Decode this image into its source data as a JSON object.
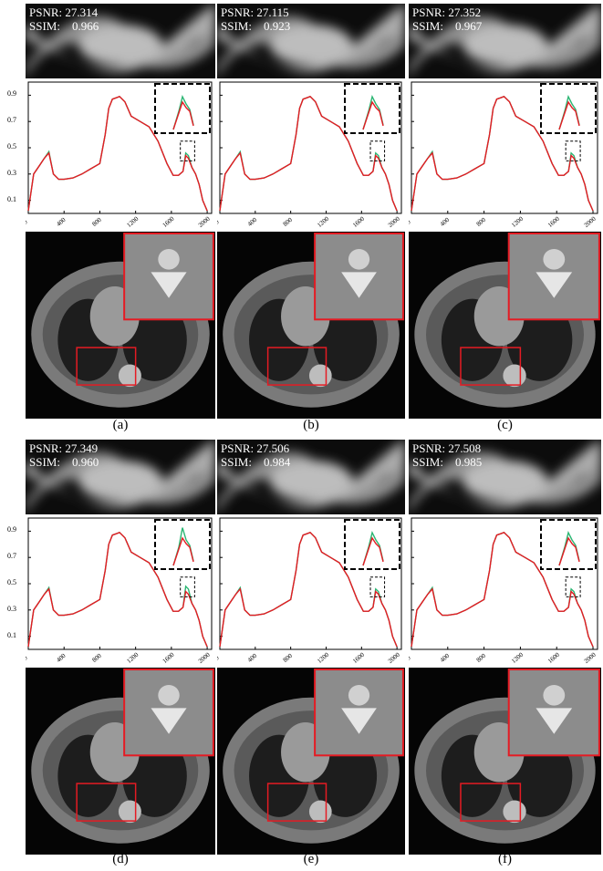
{
  "panels": [
    {
      "label": "(a)",
      "psnr": "27.314",
      "ssim": "0.966"
    },
    {
      "label": "(b)",
      "psnr": "27.115",
      "ssim": "0.923"
    },
    {
      "label": "(c)",
      "psnr": "27.352",
      "ssim": "0.967"
    },
    {
      "label": "(d)",
      "psnr": "27.349",
      "ssim": "0.960"
    },
    {
      "label": "(e)",
      "psnr": "27.506",
      "ssim": "0.984"
    },
    {
      "label": "(f)",
      "psnr": "27.508",
      "ssim": "0.985"
    }
  ],
  "metric_labels": {
    "psnr": "PSNR:",
    "ssim": "SSIM:"
  },
  "chart_data": {
    "type": "line",
    "x_ticks": [
      "0",
      "400",
      "800",
      "1200",
      "1600",
      "2000"
    ],
    "y_ticks": [
      "0.1",
      "0.3",
      "0.5",
      "0.7",
      "0.9"
    ],
    "xlim": [
      0,
      2050
    ],
    "ylim": [
      0,
      1.0
    ],
    "series": [
      {
        "color": "#2bb673",
        "x": [
          0,
          60,
          120,
          180,
          230,
          280,
          340,
          400,
          500,
          600,
          700,
          800,
          860,
          900,
          940,
          980,
          1020,
          1080,
          1150,
          1250,
          1350,
          1450,
          1550,
          1620,
          1680,
          1730,
          1760,
          1790,
          1830,
          1870,
          1910,
          1950,
          2000
        ],
        "y": [
          0.02,
          0.3,
          0.36,
          0.42,
          0.47,
          0.3,
          0.26,
          0.26,
          0.27,
          0.3,
          0.34,
          0.38,
          0.6,
          0.8,
          0.87,
          0.88,
          0.89,
          0.85,
          0.74,
          0.7,
          0.66,
          0.55,
          0.38,
          0.29,
          0.29,
          0.32,
          0.46,
          0.44,
          0.35,
          0.3,
          0.22,
          0.1,
          0.02
        ]
      },
      {
        "color": "#e51b23",
        "x": [
          0,
          60,
          120,
          180,
          230,
          280,
          340,
          400,
          500,
          600,
          700,
          800,
          860,
          900,
          940,
          980,
          1020,
          1080,
          1150,
          1250,
          1350,
          1450,
          1550,
          1620,
          1680,
          1730,
          1760,
          1790,
          1830,
          1870,
          1910,
          1950,
          2000
        ],
        "y": [
          0.02,
          0.3,
          0.36,
          0.42,
          0.46,
          0.3,
          0.26,
          0.26,
          0.27,
          0.3,
          0.34,
          0.38,
          0.6,
          0.8,
          0.87,
          0.88,
          0.89,
          0.85,
          0.74,
          0.7,
          0.66,
          0.55,
          0.38,
          0.29,
          0.29,
          0.32,
          0.44,
          0.42,
          0.35,
          0.3,
          0.22,
          0.1,
          0.02
        ]
      }
    ]
  }
}
